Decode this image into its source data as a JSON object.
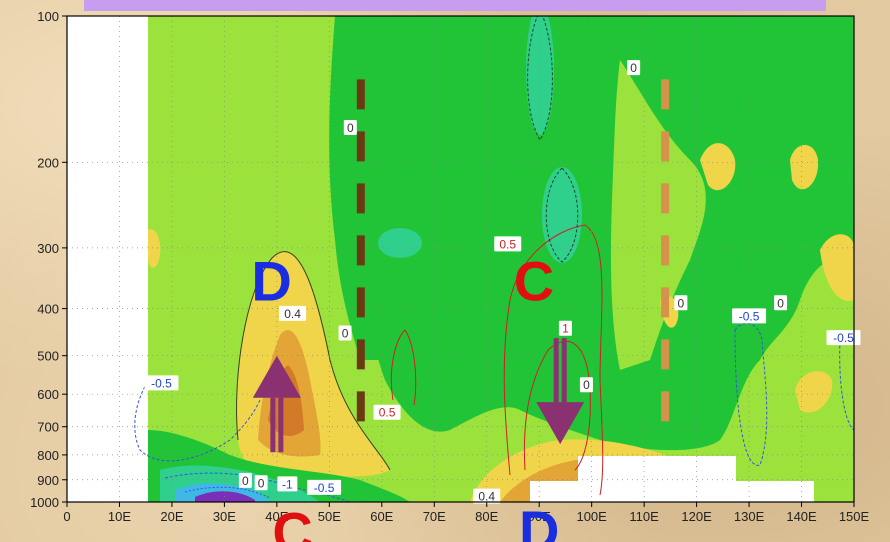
{
  "chart_data": {
    "type": "contour",
    "xlabel": "",
    "ylabel": "",
    "x_ticks": [
      "0",
      "10E",
      "20E",
      "30E",
      "40E",
      "50E",
      "60E",
      "70E",
      "80E",
      "90E",
      "100E",
      "110E",
      "120E",
      "130E",
      "140E",
      "150E"
    ],
    "x_lim": [
      0,
      150
    ],
    "y_ticks": [
      "100",
      "200",
      "300",
      "400",
      "500",
      "600",
      "700",
      "800",
      "900",
      "1000"
    ],
    "y_lim": [
      1000,
      100
    ],
    "y_scale": "log",
    "contour_labels": [
      {
        "text": "0.4",
        "lon": 43,
        "p": 410,
        "color": "#333333"
      },
      {
        "text": "0",
        "lon": 54,
        "p": 170,
        "color": "#333333"
      },
      {
        "text": "0",
        "lon": 53,
        "p": 450,
        "color": "#333333"
      },
      {
        "text": "0.5",
        "lon": 61,
        "p": 655,
        "color": "#cc2222"
      },
      {
        "text": "0.5",
        "lon": 84,
        "p": 295,
        "color": "#cc2222"
      },
      {
        "text": "1",
        "lon": 95,
        "p": 440,
        "color": "#cc2222"
      },
      {
        "text": "0",
        "lon": 99,
        "p": 575,
        "color": "#333333"
      },
      {
        "text": "0",
        "lon": 108,
        "p": 128,
        "color": "#333333"
      },
      {
        "text": "0",
        "lon": 117,
        "p": 390,
        "color": "#333333"
      },
      {
        "text": "-0.5",
        "lon": 130,
        "p": 415,
        "color": "#2244cc"
      },
      {
        "text": "0",
        "lon": 136,
        "p": 390,
        "color": "#333333"
      },
      {
        "text": "-0.5",
        "lon": 148,
        "p": 460,
        "color": "#2244cc"
      },
      {
        "text": "-0.5",
        "lon": 18,
        "p": 570,
        "color": "#2244cc"
      },
      {
        "text": "-0.5",
        "lon": 49,
        "p": 935,
        "color": "#2244cc"
      },
      {
        "text": "0",
        "lon": 34,
        "p": 905,
        "color": "#333333"
      },
      {
        "text": "0",
        "lon": 37,
        "p": 915,
        "color": "#333333"
      },
      {
        "text": "-1",
        "lon": 42,
        "p": 920,
        "color": "#2244cc"
      },
      {
        "text": "0.4",
        "lon": 80,
        "p": 975,
        "color": "#333333"
      }
    ],
    "annotations": [
      {
        "text": "D",
        "lon": 39,
        "p": 350,
        "color": "#1a2ee0"
      },
      {
        "text": "C",
        "lon": 89,
        "p": 350,
        "color": "#e01010"
      },
      {
        "text": "C",
        "lon": 43,
        "p": 1115,
        "color": "#e01010"
      },
      {
        "text": "D",
        "lon": 90,
        "p": 1100,
        "color": "#1a2ee0"
      }
    ],
    "arrows": [
      {
        "direction": "up",
        "lon": 40,
        "p_from": 790,
        "p_to": 500,
        "color": "#8b3070"
      },
      {
        "direction": "down",
        "lon": 94,
        "p_from": 460,
        "p_to": 760,
        "color": "#8b3070"
      }
    ],
    "dashed_lines": [
      {
        "lon": 56,
        "p_from": 135,
        "p_to": 720,
        "color": "#6b3a12"
      },
      {
        "lon": 114,
        "p_from": 135,
        "p_to": 720,
        "color": "#d4924a"
      }
    ],
    "colors": {
      "green": "#22c437",
      "light_green": "#9be23c",
      "teal": "#2fcf8c",
      "yellow": "#f0d54a",
      "orange": "#e2a536",
      "dark_orange": "#d27a28",
      "blue": "#2244cc",
      "red": "#cc2222",
      "banner": "#c79df0"
    }
  }
}
